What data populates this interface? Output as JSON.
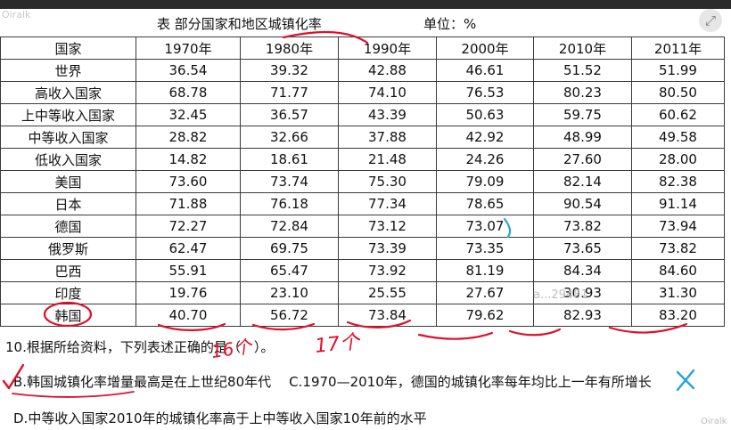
{
  "watermark_top": "Oiralk",
  "watermark_mid": "a...29481",
  "watermark_bottom": "Oiralk",
  "table": {
    "caption": "表 部分国家和地区城镇化率",
    "unit": "单位：%",
    "headers": [
      "国家",
      "1970年",
      "1980年",
      "1990年",
      "2000年",
      "2010年",
      "2011年"
    ],
    "rows": [
      [
        "世界",
        "36.54",
        "39.32",
        "42.88",
        "46.61",
        "51.52",
        "51.99"
      ],
      [
        "高收入国家",
        "68.78",
        "71.77",
        "74.10",
        "76.53",
        "80.23",
        "80.50"
      ],
      [
        "上中等收入国家",
        "32.45",
        "36.57",
        "43.39",
        "50.63",
        "59.75",
        "60.62"
      ],
      [
        "中等收入国家",
        "28.82",
        "32.66",
        "37.88",
        "42.92",
        "48.99",
        "49.58"
      ],
      [
        "低收入国家",
        "14.82",
        "18.61",
        "21.48",
        "24.26",
        "27.60",
        "28.00"
      ],
      [
        "美国",
        "73.60",
        "73.74",
        "75.30",
        "79.09",
        "82.14",
        "82.38"
      ],
      [
        "日本",
        "71.88",
        "76.18",
        "77.34",
        "78.65",
        "90.54",
        "91.14"
      ],
      [
        "德国",
        "72.27",
        "72.84",
        "73.12",
        "73.07",
        "73.82",
        "73.94"
      ],
      [
        "俄罗斯",
        "62.47",
        "69.75",
        "73.39",
        "73.35",
        "73.65",
        "73.82"
      ],
      [
        "巴西",
        "55.91",
        "65.47",
        "73.92",
        "81.19",
        "84.34",
        "84.60"
      ],
      [
        "印度",
        "19.76",
        "23.10",
        "25.55",
        "27.67",
        "30.93",
        "31.30"
      ],
      [
        "韩国",
        "40.70",
        "56.72",
        "73.84",
        "79.62",
        "82.93",
        "83.20"
      ]
    ]
  },
  "question": {
    "stem": "10.根据所给资料，下列表述正确的是（　）。",
    "option_b": "B.韩国城镇化率增量最高是在上世纪80年代",
    "option_c": "C.1970—2010年，德国的城镇化率每年均比上一年有所增长",
    "option_d": "D.中等收入国家2010年的城镇化率高于上中等收入国家10年前的水平"
  },
  "annotations": {
    "note_1": "16个",
    "note_2": "17个"
  },
  "colors": {
    "ink": "#e0102a",
    "check_blue": "#29a3d6",
    "header_bar": "#2b2b2b"
  },
  "icons": {
    "expand": "expand-icon"
  }
}
